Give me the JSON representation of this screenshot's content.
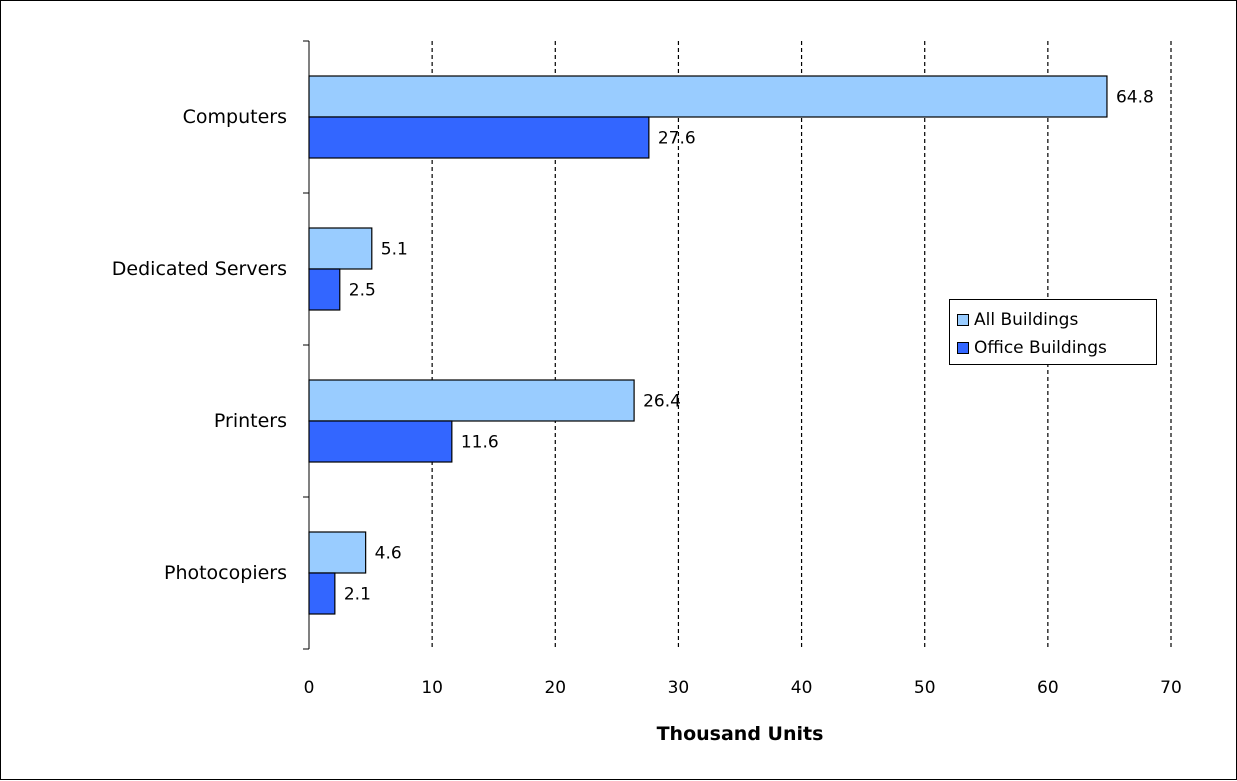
{
  "chart_data": {
    "type": "bar",
    "orientation": "horizontal",
    "categories": [
      "Computers",
      "Dedicated Servers",
      "Printers",
      "Photocopiers"
    ],
    "series": [
      {
        "name": "All Buildings",
        "color": "#99ccff",
        "values": [
          64.8,
          5.1,
          26.4,
          4.6
        ]
      },
      {
        "name": "Office Buildings",
        "color": "#3366ff",
        "values": [
          27.6,
          2.5,
          11.6,
          2.1
        ]
      }
    ],
    "xlabel": "Thousand Units",
    "xlim": [
      0,
      70
    ],
    "xticks": [
      0,
      10,
      20,
      30,
      40,
      50,
      60,
      70
    ],
    "grid": "vertical dashed",
    "legend_position": "right"
  }
}
